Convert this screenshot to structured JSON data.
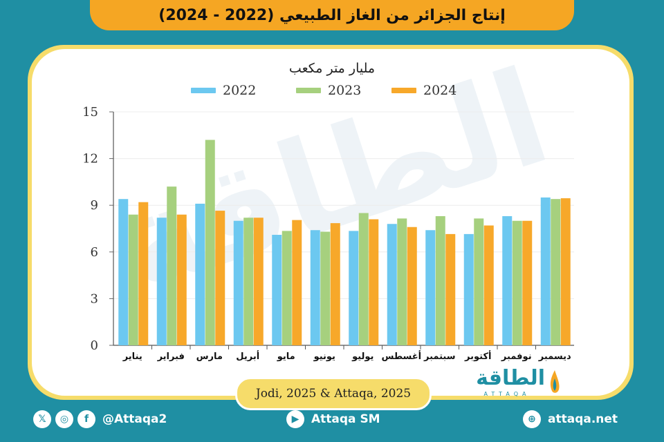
{
  "header": {
    "title": "إنتاج الجزائر من الغاز الطبيعي (2022 - 2024)"
  },
  "source": "Jodi, 2025 & Attaqa, 2025",
  "logo": {
    "arabic": "الطاقة",
    "english": "ATTAQA",
    "watermark": "الطاقة"
  },
  "footer": {
    "social_handle": "@Attaqa2",
    "youtube": "Attaqa SM",
    "website": "attaqa.net",
    "icons": [
      "x-icon",
      "instagram-icon",
      "facebook-icon",
      "youtube-icon",
      "globe-icon"
    ]
  },
  "colors": {
    "2022": "#6cc8f0",
    "2023": "#a6d07e",
    "2024": "#f7a82a",
    "background": "#1f8fa3",
    "accent": "#f5a623"
  },
  "chart_data": {
    "type": "bar",
    "title": "",
    "ylabel": "مليار متر مكعب",
    "xlabel": "",
    "ylim": [
      0,
      15
    ],
    "yticks": [
      0,
      3,
      6,
      9,
      12,
      15
    ],
    "grid": true,
    "legend_position": "top",
    "categories": [
      "يناير",
      "فبراير",
      "مارس",
      "أبريل",
      "مايو",
      "يونيو",
      "يوليو",
      "أغسطس",
      "سبتمبر",
      "أكتوبر",
      "نوفمبر",
      "ديسمبر"
    ],
    "series": [
      {
        "name": "2022",
        "color": "#6cc8f0",
        "values": [
          9.4,
          8.2,
          9.1,
          8.0,
          7.1,
          7.4,
          7.35,
          7.8,
          7.4,
          7.15,
          8.3,
          9.5
        ]
      },
      {
        "name": "2023",
        "color": "#a6d07e",
        "values": [
          8.4,
          10.2,
          13.2,
          8.2,
          7.35,
          7.3,
          8.5,
          8.15,
          8.3,
          8.15,
          8.0,
          9.4
        ]
      },
      {
        "name": "2024",
        "color": "#f7a82a",
        "values": [
          9.2,
          8.4,
          8.65,
          8.2,
          8.05,
          7.85,
          8.1,
          7.6,
          7.15,
          7.7,
          8.0,
          9.45
        ]
      }
    ]
  }
}
